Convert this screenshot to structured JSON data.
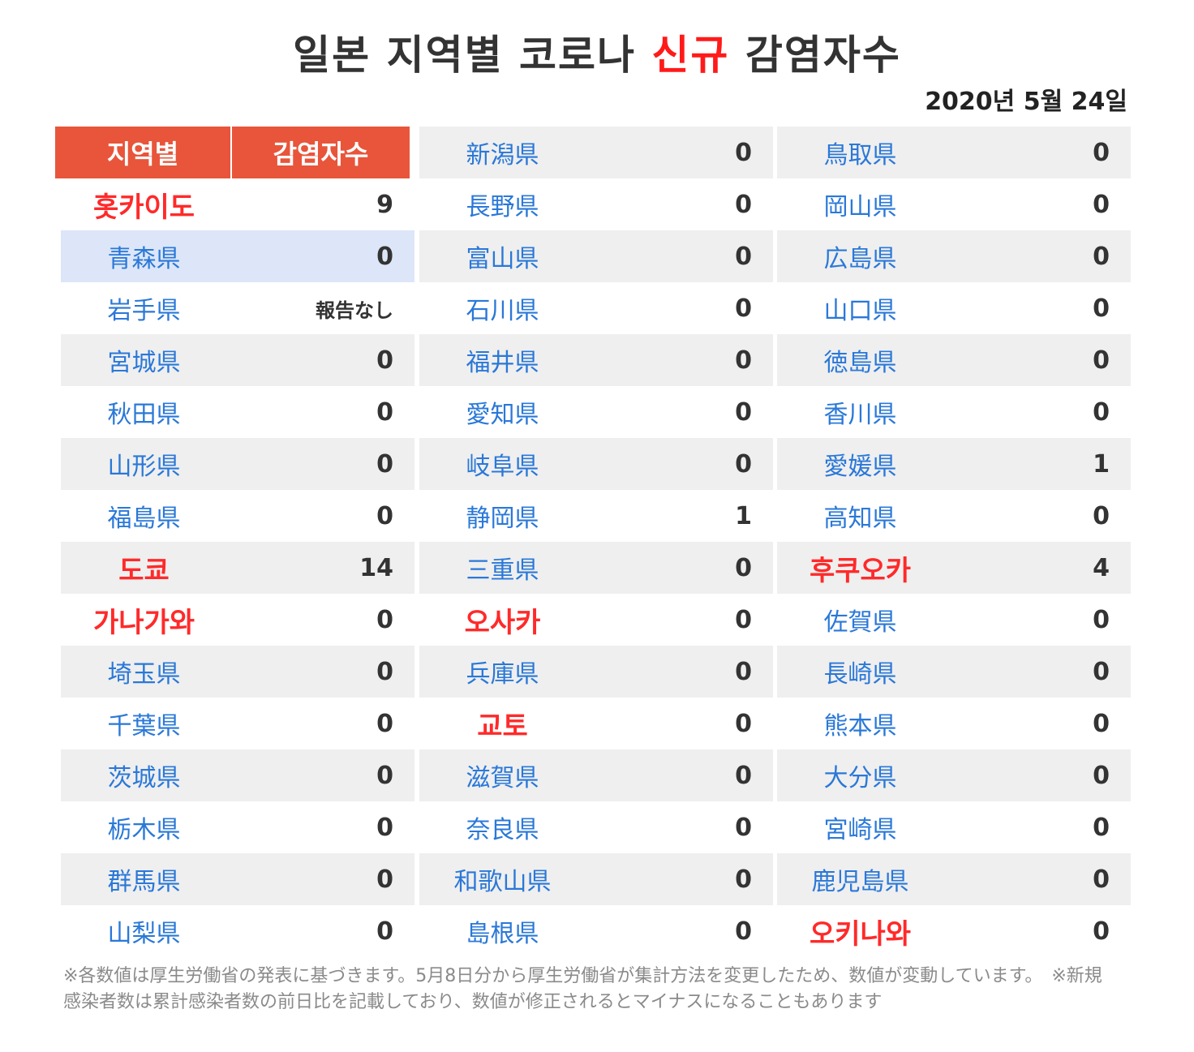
{
  "title": {
    "pre": "일본 지역별 코로나 ",
    "highlight": "신규",
    "post": " 감염자수"
  },
  "date": "2020년 5월 24일",
  "header": {
    "region": "지역별",
    "count": "감염자수"
  },
  "columns": [
    [
      {
        "name": "홋카이도",
        "value": "9",
        "major": true,
        "bg": "white"
      },
      {
        "name": "青森県",
        "value": "0",
        "bg": "blue"
      },
      {
        "name": "岩手県",
        "value": "報告なし",
        "bg": "white",
        "small": true
      },
      {
        "name": "宮城県",
        "value": "0",
        "bg": "gray"
      },
      {
        "name": "秋田県",
        "value": "0",
        "bg": "white"
      },
      {
        "name": "山形県",
        "value": "0",
        "bg": "gray"
      },
      {
        "name": "福島県",
        "value": "0",
        "bg": "white"
      },
      {
        "name": "도쿄",
        "value": "14",
        "major": true,
        "bg": "gray"
      },
      {
        "name": "가나가와",
        "value": "0",
        "major": true,
        "bg": "white"
      },
      {
        "name": "埼玉県",
        "value": "0",
        "bg": "gray"
      },
      {
        "name": "千葉県",
        "value": "0",
        "bg": "white"
      },
      {
        "name": "茨城県",
        "value": "0",
        "bg": "gray"
      },
      {
        "name": "栃木県",
        "value": "0",
        "bg": "white"
      },
      {
        "name": "群馬県",
        "value": "0",
        "bg": "gray"
      },
      {
        "name": "山梨県",
        "value": "0",
        "bg": "white"
      }
    ],
    [
      {
        "name": "新潟県",
        "value": "0",
        "bg": "gray"
      },
      {
        "name": "長野県",
        "value": "0",
        "bg": "white"
      },
      {
        "name": "富山県",
        "value": "0",
        "bg": "gray"
      },
      {
        "name": "石川県",
        "value": "0",
        "bg": "white"
      },
      {
        "name": "福井県",
        "value": "0",
        "bg": "gray"
      },
      {
        "name": "愛知県",
        "value": "0",
        "bg": "white"
      },
      {
        "name": "岐阜県",
        "value": "0",
        "bg": "gray"
      },
      {
        "name": "静岡県",
        "value": "1",
        "bg": "white"
      },
      {
        "name": "三重県",
        "value": "0",
        "bg": "gray"
      },
      {
        "name": "오사카",
        "value": "0",
        "major": true,
        "bg": "white"
      },
      {
        "name": "兵庫県",
        "value": "0",
        "bg": "gray"
      },
      {
        "name": "교토",
        "value": "0",
        "major": true,
        "bg": "white"
      },
      {
        "name": "滋賀県",
        "value": "0",
        "bg": "gray"
      },
      {
        "name": "奈良県",
        "value": "0",
        "bg": "white"
      },
      {
        "name": "和歌山県",
        "value": "0",
        "bg": "gray"
      },
      {
        "name": "島根県",
        "value": "0",
        "bg": "white"
      }
    ],
    [
      {
        "name": "鳥取県",
        "value": "0",
        "bg": "gray"
      },
      {
        "name": "岡山県",
        "value": "0",
        "bg": "white"
      },
      {
        "name": "広島県",
        "value": "0",
        "bg": "gray"
      },
      {
        "name": "山口県",
        "value": "0",
        "bg": "white"
      },
      {
        "name": "徳島県",
        "value": "0",
        "bg": "gray"
      },
      {
        "name": "香川県",
        "value": "0",
        "bg": "white"
      },
      {
        "name": "愛媛県",
        "value": "1",
        "bg": "gray"
      },
      {
        "name": "高知県",
        "value": "0",
        "bg": "white"
      },
      {
        "name": "후쿠오카",
        "value": "4",
        "major": true,
        "bg": "gray"
      },
      {
        "name": "佐賀県",
        "value": "0",
        "bg": "white"
      },
      {
        "name": "長崎県",
        "value": "0",
        "bg": "gray"
      },
      {
        "name": "熊本県",
        "value": "0",
        "bg": "white"
      },
      {
        "name": "大分県",
        "value": "0",
        "bg": "gray"
      },
      {
        "name": "宮崎県",
        "value": "0",
        "bg": "white"
      },
      {
        "name": "鹿児島県",
        "value": "0",
        "bg": "gray"
      },
      {
        "name": "오키나와",
        "value": "0",
        "major": true,
        "bg": "white"
      }
    ]
  ],
  "note": "※各数値は厚生労働省の発表に基づきます。5月8日分から厚生労働省が集計方法を変更したため、数値が変動しています。　※新規感染者数は累計感染者数の前日比を記載しており、数値が修正されるとマイナスになることもあります",
  "colors": {
    "header_bg": "#e8553a",
    "major_red": "#ff2a2a",
    "prefecture_blue": "#2a78d8",
    "row_gray": "#efefef",
    "row_highlight": "#dce6f8"
  }
}
